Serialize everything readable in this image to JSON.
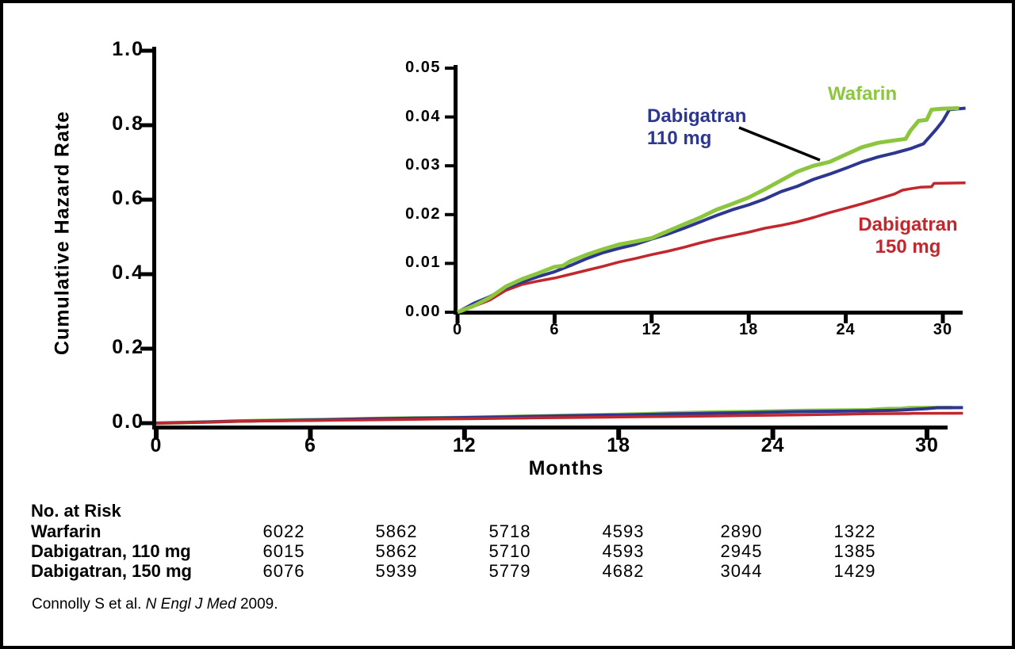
{
  "chart_data": {
    "type": "line",
    "title": "",
    "xlabel": "Months",
    "ylabel": "Cumulative Hazard Rate",
    "grid": false,
    "main_axis": {
      "xlim": [
        0,
        31.4
      ],
      "ylim": [
        0,
        1.0
      ],
      "xticks": [
        0,
        6,
        12,
        18,
        24,
        30
      ],
      "xtick_labels": [
        "0",
        "6",
        "12",
        "18",
        "24",
        "30"
      ],
      "yticks": [
        1.0,
        0.8,
        0.6,
        0.4,
        0.2,
        0.0
      ],
      "ytick_labels": [
        "1.0",
        "0.8",
        "0.6",
        "0.4",
        "0.2",
        "0.0"
      ]
    },
    "inset_axis": {
      "xlim": [
        0,
        31.4
      ],
      "ylim": [
        0,
        0.05
      ],
      "xticks": [
        0,
        6,
        12,
        18,
        24,
        30
      ],
      "xtick_labels": [
        "0",
        "6",
        "12",
        "18",
        "24",
        "30"
      ],
      "yticks": [
        0.05,
        0.04,
        0.03,
        0.02,
        0.01,
        0.0
      ],
      "ytick_labels": [
        "0.05",
        "0.04",
        "0.03",
        "0.02",
        "0.01",
        "0.00"
      ]
    },
    "series": [
      {
        "name": "Warfarin",
        "label": "Wafarin",
        "label_lines": [
          "Wafarin"
        ],
        "color": "#8CC63E",
        "x": [
          0,
          1,
          2,
          3,
          4,
          5,
          6,
          6.5,
          7,
          8,
          9,
          10,
          11,
          12,
          13,
          14,
          15,
          16,
          17,
          18,
          19,
          20,
          21,
          22,
          23,
          24,
          25,
          26,
          27,
          27.7,
          28,
          28.5,
          29,
          29.3,
          30,
          31
        ],
        "y": [
          0,
          0.0013,
          0.003,
          0.0053,
          0.0068,
          0.008,
          0.0093,
          0.0095,
          0.0105,
          0.0118,
          0.0129,
          0.0139,
          0.0145,
          0.0152,
          0.0166,
          0.018,
          0.0194,
          0.021,
          0.0222,
          0.0235,
          0.0252,
          0.027,
          0.0288,
          0.03,
          0.0308,
          0.0323,
          0.0338,
          0.0347,
          0.0352,
          0.0355,
          0.0372,
          0.0392,
          0.0394,
          0.0415,
          0.0417,
          0.0418
        ]
      },
      {
        "name": "Dabigatran 110 mg",
        "label": "Dabigatran 110 mg",
        "label_lines": [
          "Dabigatran",
          "110 mg"
        ],
        "color": "#2E3790",
        "x": [
          0,
          1,
          2,
          3,
          4,
          5,
          6,
          7,
          8,
          9,
          10,
          11,
          12,
          13,
          14,
          15,
          16,
          17,
          18,
          19,
          20,
          21,
          22,
          23,
          24,
          25,
          26,
          27,
          28,
          28.8,
          29.2,
          29.6,
          30,
          30.4,
          31.4
        ],
        "y": [
          0,
          0.0018,
          0.0032,
          0.005,
          0.0062,
          0.0073,
          0.0083,
          0.0096,
          0.011,
          0.0122,
          0.0131,
          0.0139,
          0.015,
          0.016,
          0.0172,
          0.0185,
          0.0198,
          0.021,
          0.022,
          0.0232,
          0.0247,
          0.0258,
          0.0272,
          0.0283,
          0.0295,
          0.0308,
          0.0318,
          0.0326,
          0.0335,
          0.0345,
          0.036,
          0.0375,
          0.0392,
          0.0415,
          0.0418
        ]
      },
      {
        "name": "Dabigatran 150 mg",
        "label": "Dabigatran 150 mg",
        "label_lines": [
          "Dabigatran",
          "150 mg"
        ],
        "color": "#C1272D",
        "x": [
          0,
          1,
          2,
          3,
          4,
          5,
          6,
          7,
          8,
          9,
          10,
          11,
          12,
          13,
          14,
          15,
          16,
          17,
          18,
          19,
          20,
          21,
          22,
          23,
          24,
          25,
          26,
          27,
          27.5,
          28,
          28.6,
          29.3,
          29.45,
          31.4
        ],
        "y": [
          0,
          0.0012,
          0.0025,
          0.0045,
          0.0057,
          0.0064,
          0.007,
          0.0078,
          0.0086,
          0.0094,
          0.0103,
          0.011,
          0.0118,
          0.0125,
          0.0133,
          0.0142,
          0.015,
          0.0157,
          0.0164,
          0.0172,
          0.0178,
          0.0185,
          0.0194,
          0.0204,
          0.0213,
          0.0222,
          0.0232,
          0.0242,
          0.025,
          0.0253,
          0.0256,
          0.0257,
          0.0264,
          0.0265
        ]
      }
    ]
  },
  "no_at_risk": {
    "title": "No. at Risk",
    "rows": [
      {
        "label": "Warfarin",
        "values": [
          "6022",
          "5862",
          "5718",
          "4593",
          "2890",
          "1322"
        ]
      },
      {
        "label": "Dabigatran, 110 mg",
        "values": [
          "6015",
          "5862",
          "5710",
          "4593",
          "2945",
          "1385"
        ]
      },
      {
        "label": "Dabigatran, 150 mg",
        "values": [
          "6076",
          "5939",
          "5779",
          "4682",
          "3044",
          "1429"
        ]
      }
    ]
  },
  "citation": {
    "prefix": "Connolly S et al. ",
    "journal": "N Engl J Med",
    "suffix": " 2009."
  }
}
